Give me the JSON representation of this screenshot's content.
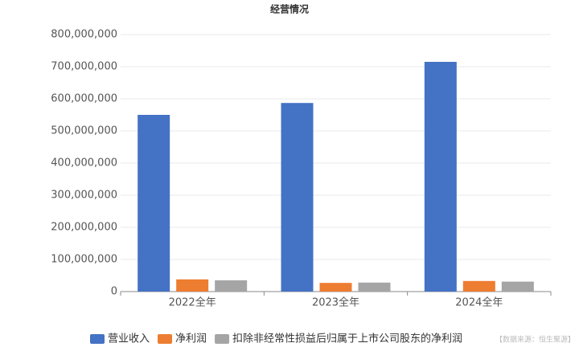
{
  "chart_data": {
    "type": "bar",
    "title": "经营情况",
    "categories": [
      "2022全年",
      "2023全年",
      "2024全年"
    ],
    "series": [
      {
        "name": "营业收入",
        "color": "#4472c4",
        "values": [
          550000000,
          587000000,
          715000000
        ]
      },
      {
        "name": "净利润",
        "color": "#ed7d31",
        "values": [
          38000000,
          27000000,
          33000000
        ]
      },
      {
        "name": "扣除非经常性损益后归属于上市公司股东的净利润",
        "color": "#a5a5a5",
        "values": [
          35000000,
          28000000,
          31000000
        ]
      }
    ],
    "ylim": [
      0,
      800000000
    ],
    "yticks": [
      0,
      {
        "value": 100000000,
        "label": "100,000,000"
      },
      {
        "value": 200000000,
        "label": "200,000,000"
      },
      {
        "value": 300000000,
        "label": "300,000,000"
      },
      {
        "value": 400000000,
        "label": "400,000,000"
      },
      {
        "value": 500000000,
        "label": "500,000,000"
      },
      {
        "value": 600000000,
        "label": "600,000,000"
      },
      {
        "value": 700000000,
        "label": "700,000,000"
      },
      {
        "value": 800000000,
        "label": "800,000,000"
      }
    ],
    "grid": true,
    "legend": "bottom",
    "source": "【数据来源：恒生聚源】"
  }
}
